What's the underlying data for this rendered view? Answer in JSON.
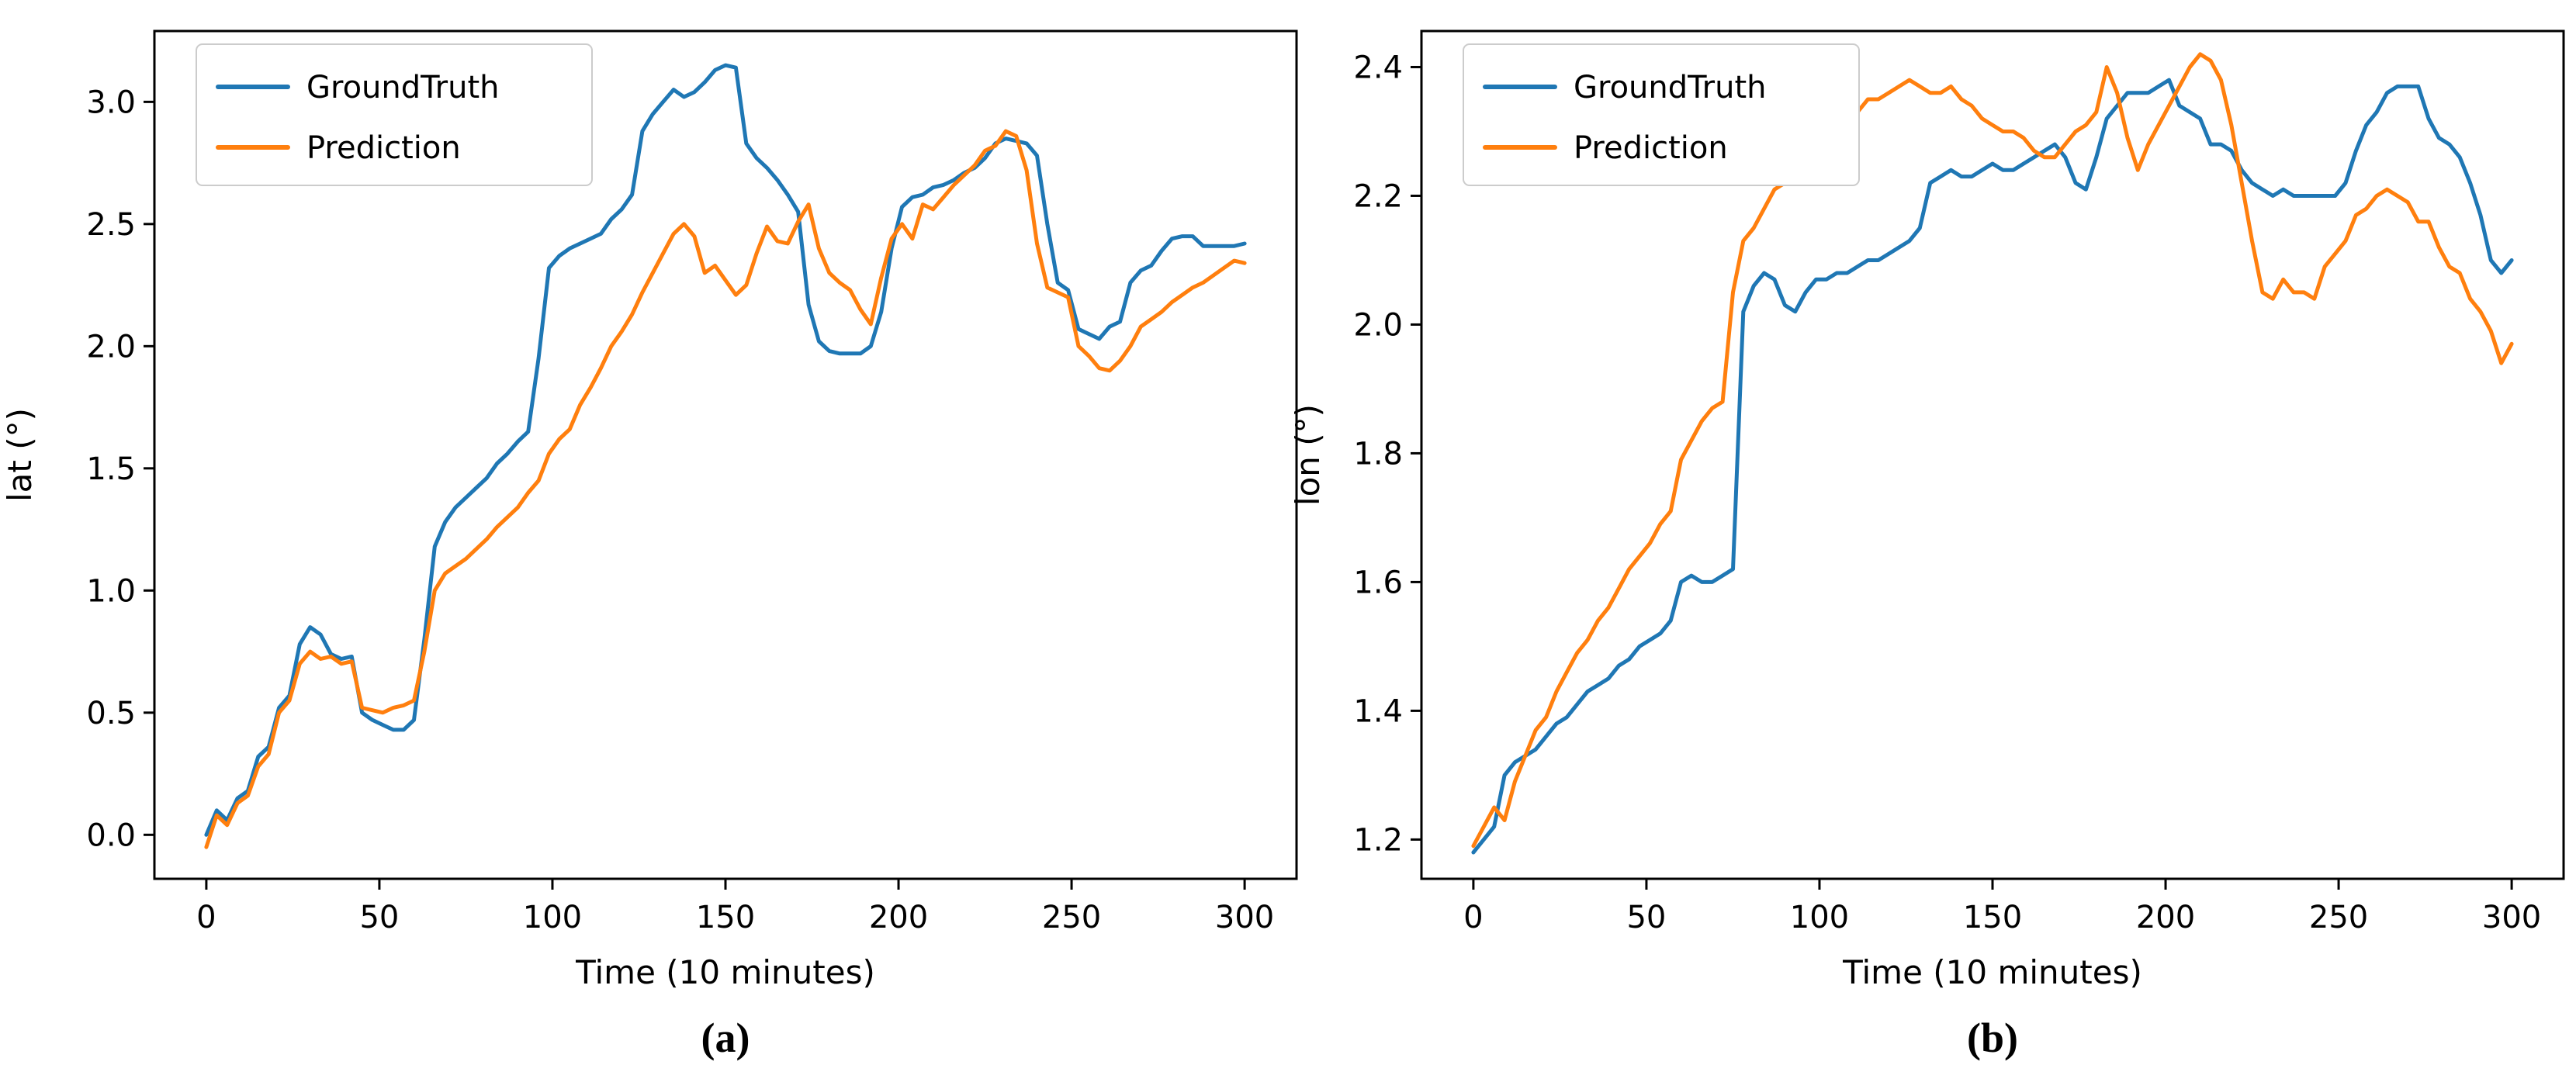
{
  "figure": {
    "background": "#ffffff",
    "axis_color": "#000000",
    "legend_border_color": "#cccccc",
    "captions": [
      "(a)",
      "(b)"
    ],
    "xlabel": "Time (10 minutes)",
    "legend_labels": [
      "GroundTruth",
      "Prediction"
    ],
    "colors": {
      "groundtruth": "#1f77b4",
      "prediction": "#ff7f0e"
    }
  },
  "chart_data": [
    {
      "type": "line",
      "caption": "(a)",
      "xlabel": "Time (10 minutes)",
      "ylabel": "lat (°)",
      "grid": false,
      "legend_position": "upper left",
      "xlim": [
        -15,
        315
      ],
      "ylim": [
        -0.18,
        3.29
      ],
      "xticks": [
        0,
        50,
        100,
        150,
        200,
        250,
        300
      ],
      "xtick_labels": [
        "0",
        "50",
        "100",
        "150",
        "200",
        "250",
        "300"
      ],
      "yticks": [
        0.0,
        0.5,
        1.0,
        1.5,
        2.0,
        2.5,
        3.0
      ],
      "ytick_labels": [
        "0.0",
        "0.5",
        "1.0",
        "1.5",
        "2.0",
        "2.5",
        "3.0"
      ],
      "x": [
        0,
        3,
        6,
        9,
        12,
        15,
        18,
        21,
        24,
        27,
        30,
        33,
        36,
        39,
        42,
        45,
        48,
        51,
        54,
        57,
        60,
        63,
        66,
        69,
        72,
        75,
        78,
        81,
        84,
        87,
        90,
        93,
        96,
        99,
        102,
        105,
        108,
        111,
        114,
        117,
        120,
        123,
        126,
        129,
        132,
        135,
        138,
        141,
        144,
        147,
        150,
        153,
        156,
        159,
        162,
        165,
        168,
        171,
        174,
        177,
        180,
        183,
        186,
        189,
        192,
        195,
        198,
        201,
        204,
        207,
        210,
        213,
        216,
        219,
        222,
        225,
        228,
        231,
        234,
        237,
        240,
        243,
        246,
        249,
        252,
        255,
        258,
        261,
        264,
        267,
        270,
        273,
        276,
        279,
        282,
        285,
        288,
        291,
        294,
        297,
        300
      ],
      "series": [
        {
          "name": "GroundTruth",
          "color": "#1f77b4",
          "y": [
            0.0,
            0.1,
            0.06,
            0.15,
            0.18,
            0.32,
            0.36,
            0.52,
            0.57,
            0.78,
            0.85,
            0.82,
            0.74,
            0.72,
            0.73,
            0.5,
            0.47,
            0.45,
            0.43,
            0.43,
            0.47,
            0.8,
            1.18,
            1.28,
            1.34,
            1.38,
            1.42,
            1.46,
            1.52,
            1.56,
            1.61,
            1.65,
            1.95,
            2.32,
            2.37,
            2.4,
            2.42,
            2.44,
            2.46,
            2.52,
            2.56,
            2.62,
            2.88,
            2.95,
            3.0,
            3.05,
            3.02,
            3.04,
            3.08,
            3.13,
            3.15,
            3.14,
            2.83,
            2.77,
            2.73,
            2.68,
            2.62,
            2.55,
            2.17,
            2.02,
            1.98,
            1.97,
            1.97,
            1.97,
            2.0,
            2.14,
            2.4,
            2.57,
            2.61,
            2.62,
            2.65,
            2.66,
            2.68,
            2.71,
            2.73,
            2.77,
            2.83,
            2.85,
            2.84,
            2.83,
            2.78,
            2.5,
            2.26,
            2.23,
            2.07,
            2.05,
            2.03,
            2.08,
            2.1,
            2.26,
            2.31,
            2.33,
            2.39,
            2.44,
            2.45,
            2.45,
            2.41,
            2.41,
            2.41,
            2.41,
            2.42
          ]
        },
        {
          "name": "Prediction",
          "color": "#ff7f0e",
          "y": [
            -0.05,
            0.08,
            0.04,
            0.13,
            0.16,
            0.28,
            0.33,
            0.5,
            0.55,
            0.7,
            0.75,
            0.72,
            0.73,
            0.7,
            0.71,
            0.52,
            0.51,
            0.5,
            0.52,
            0.53,
            0.55,
            0.75,
            1.0,
            1.07,
            1.1,
            1.13,
            1.17,
            1.21,
            1.26,
            1.3,
            1.34,
            1.4,
            1.45,
            1.56,
            1.62,
            1.66,
            1.76,
            1.83,
            1.91,
            2.0,
            2.06,
            2.13,
            2.22,
            2.3,
            2.38,
            2.46,
            2.5,
            2.45,
            2.3,
            2.33,
            2.27,
            2.21,
            2.25,
            2.38,
            2.49,
            2.43,
            2.42,
            2.51,
            2.58,
            2.4,
            2.3,
            2.26,
            2.23,
            2.15,
            2.09,
            2.28,
            2.44,
            2.5,
            2.44,
            2.58,
            2.56,
            2.61,
            2.66,
            2.7,
            2.74,
            2.8,
            2.82,
            2.88,
            2.86,
            2.72,
            2.42,
            2.24,
            2.22,
            2.2,
            2.0,
            1.96,
            1.91,
            1.9,
            1.94,
            2.0,
            2.08,
            2.11,
            2.14,
            2.18,
            2.21,
            2.24,
            2.26,
            2.29,
            2.32,
            2.35,
            2.34
          ]
        }
      ]
    },
    {
      "type": "line",
      "caption": "(b)",
      "xlabel": "Time (10 minutes)",
      "ylabel": "lon (°)",
      "grid": false,
      "legend_position": "upper left",
      "xlim": [
        -15,
        315
      ],
      "ylim": [
        1.139,
        2.456
      ],
      "xticks": [
        0,
        50,
        100,
        150,
        200,
        250,
        300
      ],
      "xtick_labels": [
        "0",
        "50",
        "100",
        "150",
        "200",
        "250",
        "300"
      ],
      "yticks": [
        1.2,
        1.4,
        1.6,
        1.8,
        2.0,
        2.2,
        2.4
      ],
      "ytick_labels": [
        "1.2",
        "1.4",
        "1.6",
        "1.8",
        "2.0",
        "2.2",
        "2.4"
      ],
      "x": [
        0,
        3,
        6,
        9,
        12,
        15,
        18,
        21,
        24,
        27,
        30,
        33,
        36,
        39,
        42,
        45,
        48,
        51,
        54,
        57,
        60,
        63,
        66,
        69,
        72,
        75,
        78,
        81,
        84,
        87,
        90,
        93,
        96,
        99,
        102,
        105,
        108,
        111,
        114,
        117,
        120,
        123,
        126,
        129,
        132,
        135,
        138,
        141,
        144,
        147,
        150,
        153,
        156,
        159,
        162,
        165,
        168,
        171,
        174,
        177,
        180,
        183,
        186,
        189,
        192,
        195,
        198,
        201,
        204,
        207,
        210,
        213,
        216,
        219,
        222,
        225,
        228,
        231,
        234,
        237,
        240,
        243,
        246,
        249,
        252,
        255,
        258,
        261,
        264,
        267,
        270,
        273,
        276,
        279,
        282,
        285,
        288,
        291,
        294,
        297,
        300
      ],
      "series": [
        {
          "name": "GroundTruth",
          "color": "#1f77b4",
          "y": [
            1.18,
            1.2,
            1.22,
            1.3,
            1.32,
            1.33,
            1.34,
            1.36,
            1.38,
            1.39,
            1.41,
            1.43,
            1.44,
            1.45,
            1.47,
            1.48,
            1.5,
            1.51,
            1.52,
            1.54,
            1.6,
            1.61,
            1.6,
            1.6,
            1.61,
            1.62,
            2.02,
            2.06,
            2.08,
            2.07,
            2.03,
            2.02,
            2.05,
            2.07,
            2.07,
            2.08,
            2.08,
            2.09,
            2.1,
            2.1,
            2.11,
            2.12,
            2.13,
            2.15,
            2.22,
            2.23,
            2.24,
            2.23,
            2.23,
            2.24,
            2.25,
            2.24,
            2.24,
            2.25,
            2.26,
            2.27,
            2.28,
            2.26,
            2.22,
            2.21,
            2.26,
            2.32,
            2.34,
            2.36,
            2.36,
            2.36,
            2.37,
            2.38,
            2.34,
            2.33,
            2.32,
            2.28,
            2.28,
            2.27,
            2.24,
            2.22,
            2.21,
            2.2,
            2.21,
            2.2,
            2.2,
            2.2,
            2.2,
            2.2,
            2.22,
            2.27,
            2.31,
            2.33,
            2.36,
            2.37,
            2.37,
            2.37,
            2.32,
            2.29,
            2.28,
            2.26,
            2.22,
            2.17,
            2.1,
            2.08,
            2.1
          ]
        },
        {
          "name": "Prediction",
          "color": "#ff7f0e",
          "y": [
            1.19,
            1.22,
            1.25,
            1.23,
            1.29,
            1.33,
            1.37,
            1.39,
            1.43,
            1.46,
            1.49,
            1.51,
            1.54,
            1.56,
            1.59,
            1.62,
            1.64,
            1.66,
            1.69,
            1.71,
            1.79,
            1.82,
            1.85,
            1.87,
            1.88,
            2.05,
            2.13,
            2.15,
            2.18,
            2.21,
            2.22,
            2.26,
            2.28,
            2.29,
            2.28,
            2.32,
            2.33,
            2.33,
            2.35,
            2.35,
            2.36,
            2.37,
            2.38,
            2.37,
            2.36,
            2.36,
            2.37,
            2.35,
            2.34,
            2.32,
            2.31,
            2.3,
            2.3,
            2.29,
            2.27,
            2.26,
            2.26,
            2.28,
            2.3,
            2.31,
            2.33,
            2.4,
            2.36,
            2.29,
            2.24,
            2.28,
            2.31,
            2.34,
            2.37,
            2.4,
            2.42,
            2.41,
            2.38,
            2.31,
            2.22,
            2.13,
            2.05,
            2.04,
            2.07,
            2.05,
            2.05,
            2.04,
            2.09,
            2.11,
            2.13,
            2.17,
            2.18,
            2.2,
            2.21,
            2.2,
            2.19,
            2.16,
            2.16,
            2.12,
            2.09,
            2.08,
            2.04,
            2.02,
            1.99,
            1.94,
            1.97
          ]
        }
      ]
    }
  ]
}
